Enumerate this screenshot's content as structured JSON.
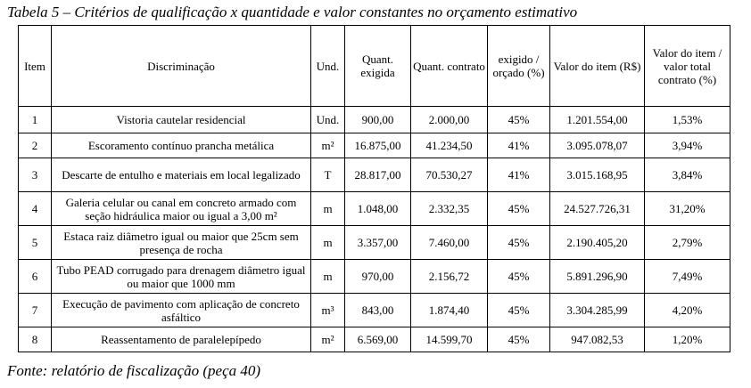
{
  "caption": "Tabela 5 – Critérios de qualificação x quantidade e valor constantes no orçamento estimativo",
  "table": {
    "header": [
      "Item",
      "Discriminação",
      "Und.",
      "Quant. exigida",
      "Quant. contrato",
      "exigido / orçado (%)",
      "Valor do item (R$)",
      "Valor do item / valor total contrato (%)"
    ],
    "rows": [
      [
        "1",
        "Vistoria cautelar residencial",
        "Und.",
        "900,00",
        "2.000,00",
        "45%",
        "1.201.554,00",
        "1,53%"
      ],
      [
        "2",
        "Escoramento contínuo prancha metálica",
        "m²",
        "16.875,00",
        "41.234,50",
        "41%",
        "3.095.078,07",
        "3,94%"
      ],
      [
        "3",
        "Descarte de entulho e materiais em local legalizado",
        "T",
        "28.817,00",
        "70.530,27",
        "41%",
        "3.015.168,95",
        "3,84%"
      ],
      [
        "4",
        "Galeria celular ou canal em concreto armado com seção hidráulica maior ou igual a 3,00 m²",
        "m",
        "1.048,00",
        "2.332,35",
        "45%",
        "24.527.726,31",
        "31,20%"
      ],
      [
        "5",
        "Estaca raiz diâmetro igual ou maior que 25cm sem presença de rocha",
        "m",
        "3.357,00",
        "7.460,00",
        "45%",
        "2.190.405,20",
        "2,79%"
      ],
      [
        "6",
        "Tubo PEAD corrugado para drenagem diâmetro igual ou maior que 1000 mm",
        "m",
        "970,00",
        "2.156,72",
        "45%",
        "5.891.296,90",
        "7,49%"
      ],
      [
        "7",
        "Execução de pavimento com aplicação de concreto asfáltico",
        "m³",
        "843,00",
        "1.874,40",
        "45%",
        "3.304.285,99",
        "4,20%"
      ],
      [
        "8",
        "Reassentamento de paralelepípedo",
        "m²",
        "6.569,00",
        "14.599,70",
        "45%",
        "947.082,53",
        "1,20%"
      ]
    ]
  },
  "source": "Fonte: relatório de fiscalização (peça 40)"
}
